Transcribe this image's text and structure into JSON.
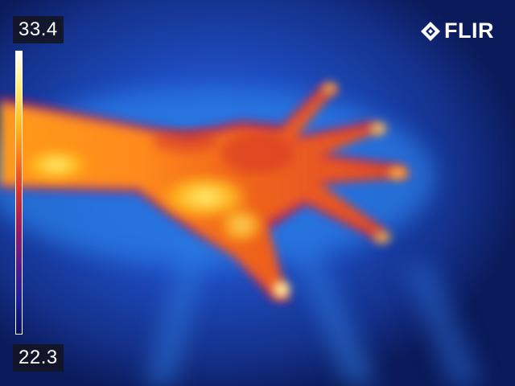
{
  "overlay": {
    "max_temp": "33.4",
    "min_temp": "22.3",
    "brand": "FLIR",
    "brand_icon": "flir-diamond-icon"
  },
  "palette": {
    "name": "iron",
    "stops": [
      "#ffffff",
      "#fff07a",
      "#ffbe1e",
      "#ff7a14",
      "#d8322a",
      "#a01a5e",
      "#5a1a8c",
      "#1e1f9a",
      "#061060"
    ],
    "background_blue": "#1a3fb0",
    "background_dark": "#0a1a5a"
  },
  "scene": {
    "subject": "hand-and-forearm"
  }
}
